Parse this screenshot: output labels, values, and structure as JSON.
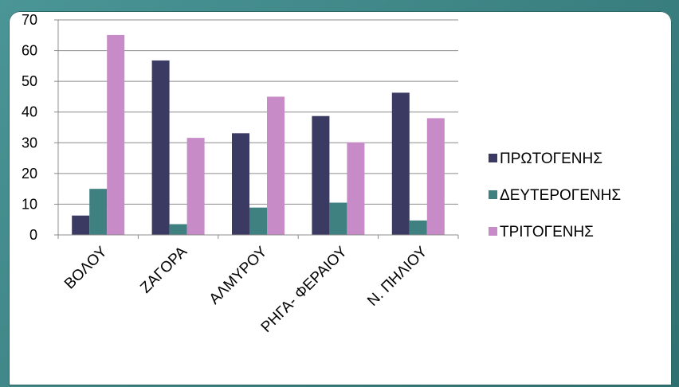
{
  "chart_data": {
    "type": "bar",
    "categories": [
      "ΒΟΛΟΥ",
      "ΖΑΓΟΡΑ",
      "ΑΛΜΥΡΟΥ",
      "ΡΗΓΑ- ΦΕΡΑΙΟΥ",
      "Ν. ΠΗΛΙΟΥ"
    ],
    "series": [
      {
        "name": "ΠΡΩΤΟΓΕΝΗΣ",
        "color": "#3b3a63",
        "values": [
          6.3,
          56.8,
          33.1,
          38.7,
          46.3
        ]
      },
      {
        "name": "ΔΕΥΤΕΡΟΓΕΝΗΣ",
        "color": "#3f8081",
        "values": [
          15,
          3.5,
          8.9,
          10.5,
          4.7
        ]
      },
      {
        "name": "ΤΡΙΤΟΓΕΝΗΣ",
        "color": "#c78bc8",
        "values": [
          65.1,
          31.6,
          45,
          30.1,
          38
        ]
      }
    ],
    "ylim": [
      0,
      70
    ],
    "yticks": [
      0,
      10,
      20,
      30,
      40,
      50,
      60,
      70
    ],
    "grid": true,
    "legend_position": "right"
  }
}
